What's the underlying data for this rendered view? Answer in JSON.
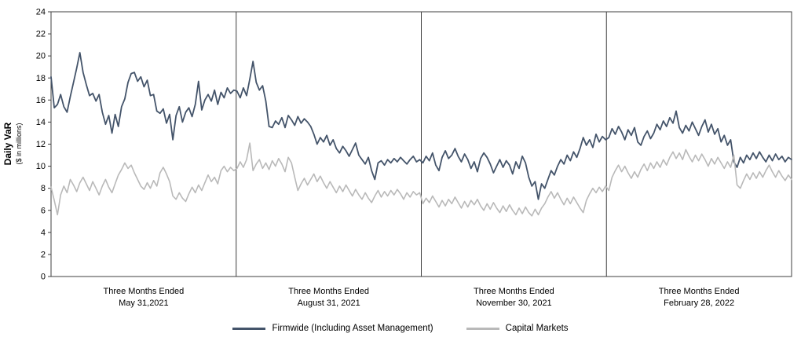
{
  "chart_data": {
    "type": "line",
    "title": "",
    "ylabel_main": "Daily VaR",
    "ylabel_sub": "($ in millions)",
    "ylim": [
      0,
      24
    ],
    "y_tick_step": 2,
    "grid": "off",
    "legend_position": "bottom",
    "category_prefix": "Three Months Ended",
    "categories": [
      "May 31,2021",
      "August 31, 2021",
      "November 30, 2021",
      "February 28, 2022"
    ],
    "points_per_category": 58,
    "series": [
      {
        "name": "Firmwide (Including Asset Management)",
        "color": "#44546a",
        "values": [
          18.1,
          15.3,
          15.6,
          16.5,
          15.4,
          14.9,
          16.3,
          17.6,
          18.9,
          20.3,
          18.5,
          17.4,
          16.4,
          16.6,
          15.9,
          16.5,
          14.9,
          13.8,
          14.6,
          13.0,
          14.7,
          13.6,
          15.4,
          16.1,
          17.6,
          18.4,
          18.5,
          17.7,
          18.1,
          17.2,
          17.8,
          16.4,
          16.5,
          15.0,
          14.8,
          15.2,
          13.9,
          14.7,
          12.4,
          14.6,
          15.4,
          14.0,
          14.9,
          15.3,
          14.5,
          15.6,
          17.7,
          15.1,
          16.0,
          16.5,
          15.9,
          16.9,
          15.6,
          16.7,
          16.2,
          17.1,
          16.6,
          16.9,
          16.8,
          16.2,
          17.1,
          16.4,
          17.9,
          19.5,
          17.6,
          16.9,
          17.3,
          15.9,
          13.6,
          13.5,
          14.1,
          13.8,
          14.4,
          13.5,
          14.6,
          14.2,
          13.7,
          14.5,
          13.9,
          14.3,
          14.0,
          13.6,
          12.9,
          12.0,
          12.6,
          12.2,
          12.8,
          11.9,
          12.4,
          11.6,
          11.2,
          11.8,
          11.4,
          10.9,
          11.5,
          12.1,
          11.0,
          10.6,
          10.2,
          10.8,
          9.6,
          8.8,
          10.3,
          10.5,
          10.1,
          10.6,
          10.3,
          10.7,
          10.4,
          10.8,
          10.5,
          10.2,
          10.6,
          10.9,
          10.4,
          10.6,
          10.3,
          10.9,
          10.5,
          11.2,
          10.1,
          9.6,
          10.8,
          11.4,
          10.7,
          11.0,
          11.6,
          10.9,
          10.4,
          11.1,
          10.6,
          9.8,
          10.4,
          9.5,
          10.7,
          11.2,
          10.8,
          10.2,
          9.4,
          10.0,
          10.6,
          9.9,
          10.5,
          10.1,
          9.3,
          10.4,
          9.8,
          10.9,
          10.3,
          9.0,
          8.2,
          8.6,
          7.0,
          8.4,
          8.0,
          8.8,
          9.6,
          9.2,
          10.0,
          10.6,
          10.2,
          11.0,
          10.5,
          11.3,
          10.8,
          11.6,
          12.6,
          11.9,
          12.4,
          11.7,
          12.9,
          12.2,
          12.7,
          12.4,
          12.6,
          13.4,
          12.9,
          13.6,
          13.1,
          12.4,
          13.3,
          12.8,
          13.5,
          12.2,
          11.9,
          12.7,
          13.2,
          12.5,
          13.0,
          13.8,
          13.3,
          14.1,
          13.6,
          14.4,
          13.9,
          15.0,
          13.5,
          13.0,
          13.7,
          13.2,
          14.0,
          13.4,
          12.8,
          13.6,
          14.2,
          13.1,
          13.8,
          12.9,
          13.4,
          12.2,
          12.8,
          11.9,
          12.4,
          10.4,
          9.9,
          10.8,
          10.3,
          11.0,
          10.6,
          11.2,
          10.7,
          11.3,
          10.8,
          10.4,
          11.0,
          10.5,
          11.1,
          10.6,
          10.9,
          10.4,
          10.8,
          10.6
        ]
      },
      {
        "name": "Capital Markets",
        "color": "#b9b9b9",
        "values": [
          8.1,
          6.9,
          5.6,
          7.4,
          8.2,
          7.6,
          8.8,
          8.3,
          7.7,
          8.5,
          9.0,
          8.4,
          7.8,
          8.6,
          8.0,
          7.4,
          8.2,
          8.8,
          8.1,
          7.6,
          8.4,
          9.2,
          9.7,
          10.3,
          9.8,
          10.1,
          9.4,
          8.8,
          8.2,
          7.9,
          8.5,
          8.0,
          8.7,
          8.2,
          9.4,
          9.9,
          9.3,
          8.6,
          7.3,
          7.0,
          7.6,
          7.1,
          6.8,
          7.5,
          8.1,
          7.6,
          8.3,
          7.8,
          8.5,
          9.2,
          8.6,
          9.0,
          8.4,
          9.6,
          10.0,
          9.5,
          9.9,
          9.6,
          9.8,
          10.4,
          9.9,
          10.6,
          12.1,
          9.6,
          10.2,
          10.6,
          9.8,
          10.3,
          9.7,
          10.5,
          10.0,
          10.7,
          10.2,
          9.5,
          10.8,
          10.3,
          9.0,
          7.8,
          8.4,
          8.9,
          8.3,
          8.8,
          9.3,
          8.6,
          9.1,
          8.5,
          8.0,
          8.6,
          8.1,
          7.6,
          8.2,
          7.7,
          8.3,
          7.8,
          7.3,
          7.9,
          7.4,
          7.0,
          7.6,
          7.1,
          6.7,
          7.3,
          7.8,
          7.2,
          7.7,
          7.3,
          7.8,
          7.4,
          7.9,
          7.5,
          7.0,
          7.6,
          7.2,
          7.7,
          7.4,
          7.6,
          6.6,
          7.1,
          6.7,
          7.3,
          6.8,
          6.3,
          6.9,
          6.4,
          7.0,
          6.6,
          7.2,
          6.7,
          6.2,
          6.8,
          6.3,
          6.9,
          6.5,
          7.0,
          6.4,
          6.0,
          6.6,
          6.1,
          6.7,
          6.2,
          5.8,
          6.4,
          5.9,
          6.5,
          6.0,
          5.6,
          6.2,
          5.7,
          6.3,
          5.8,
          5.5,
          6.1,
          5.6,
          6.2,
          6.6,
          7.2,
          7.7,
          7.1,
          7.6,
          7.0,
          6.5,
          7.1,
          6.6,
          7.2,
          6.7,
          6.2,
          5.8,
          6.9,
          7.5,
          8.0,
          7.6,
          8.1,
          7.7,
          8.2,
          7.8,
          9.0,
          9.6,
          10.1,
          9.5,
          10.0,
          9.4,
          8.9,
          9.5,
          9.0,
          9.7,
          10.2,
          9.6,
          10.3,
          9.8,
          10.4,
          9.9,
          10.6,
          10.1,
          10.8,
          11.3,
          10.7,
          11.2,
          10.6,
          11.5,
          10.9,
          10.4,
          11.0,
          10.5,
          11.1,
          10.6,
          10.0,
          10.7,
          10.2,
          10.8,
          10.3,
          9.8,
          10.4,
          9.9,
          11.0,
          8.3,
          8.0,
          8.7,
          9.3,
          8.8,
          9.4,
          8.9,
          9.5,
          9.0,
          9.6,
          10.1,
          9.5,
          9.0,
          9.6,
          9.1,
          8.7,
          9.2,
          8.8
        ]
      }
    ]
  }
}
